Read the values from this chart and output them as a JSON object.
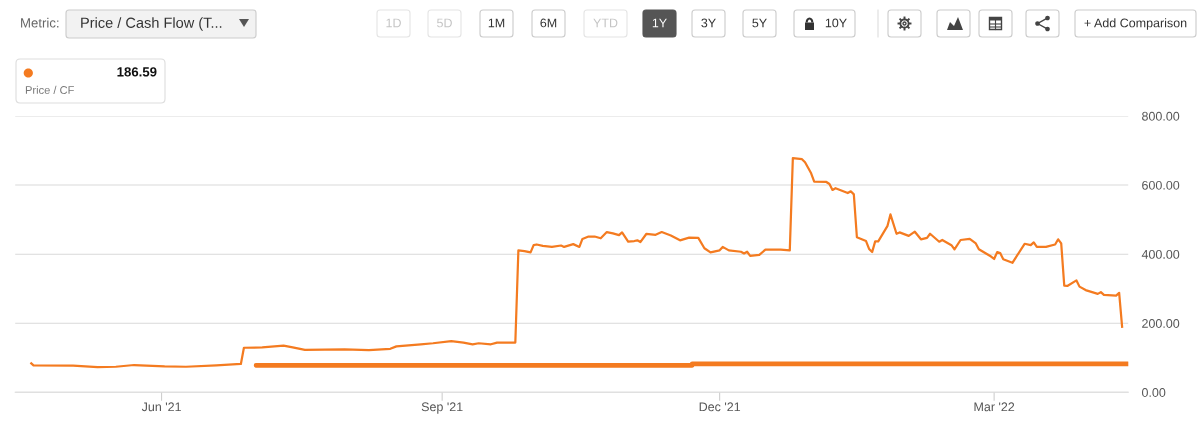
{
  "chart_data": {
    "type": "line",
    "title": "Price / Cash Flow (T...",
    "annotations": [
      "Metric:",
      "1D",
      "5D",
      "1M",
      "6M",
      "YTD",
      "1Y",
      "3Y",
      "5Y",
      "10Y",
      "+ Add Comparison",
      "186.59",
      "Price / CF"
    ],
    "xlim": [
      "2021-04-14",
      "2022-04-14"
    ],
    "xticks": [
      {
        "value": "2021-06-01",
        "label": "Jun '21"
      },
      {
        "value": "2021-09-01",
        "label": "Sep '21"
      },
      {
        "value": "2021-12-01",
        "label": "Dec '21"
      },
      {
        "value": "2022-03-01",
        "label": "Mar '22"
      }
    ],
    "ylim": [
      0,
      800
    ],
    "yticks": [
      {
        "value": 0,
        "label": "0.00"
      },
      {
        "value": 200,
        "label": "200.00"
      },
      {
        "value": 400,
        "label": "400.00"
      },
      {
        "value": 600,
        "label": "600.00"
      },
      {
        "value": 800,
        "label": "800.00"
      }
    ],
    "grid": "y",
    "line_style": "solid",
    "series": [
      {
        "color": "#f47b20",
        "x": [
          "2021-04-19",
          "2021-04-20",
          "2021-05-03",
          "2021-05-11",
          "2021-05-17",
          "2021-05-23",
          "2021-06-02",
          "2021-06-09",
          "2021-06-19",
          "2021-06-27",
          "2021-06-28",
          "2021-07-04",
          "2021-07-11",
          "2021-07-14",
          "2021-07-18",
          "2021-07-31",
          "2021-08-08",
          "2021-08-15",
          "2021-08-17",
          "2021-08-25",
          "2021-08-29",
          "2021-09-04",
          "2021-09-08",
          "2021-09-11",
          "2021-09-13",
          "2021-09-17",
          "2021-09-19",
          "2021-09-25",
          "2021-09-26",
          "2021-09-28",
          "2021-09-30",
          "2021-10-01",
          "2021-10-02",
          "2021-10-04",
          "2021-10-07",
          "2021-10-10",
          "2021-10-11",
          "2021-10-14",
          "2021-10-16",
          "2021-10-17",
          "2021-10-19",
          "2021-10-21",
          "2021-10-23",
          "2021-10-25",
          "2021-10-27",
          "2021-10-29",
          "2021-10-30",
          "2021-11-01",
          "2021-11-03",
          "2021-11-04",
          "2021-11-05",
          "2021-11-07",
          "2021-11-10",
          "2021-11-12",
          "2021-11-15",
          "2021-11-18",
          "2021-11-21",
          "2021-11-24",
          "2021-11-26",
          "2021-11-28",
          "2021-12-01",
          "2021-12-02",
          "2021-12-04",
          "2021-12-08",
          "2021-12-09",
          "2021-12-10",
          "2021-12-11",
          "2021-12-14",
          "2021-12-16",
          "2021-12-21",
          "2021-12-24",
          "2021-12-25",
          "2021-12-28",
          "2021-12-29",
          "2021-12-31",
          "2022-01-01",
          "2022-01-05",
          "2022-01-06",
          "2022-01-07",
          "2022-01-08",
          "2022-01-12",
          "2022-01-13",
          "2022-01-14",
          "2022-01-15",
          "2022-01-18",
          "2022-01-19",
          "2022-01-20",
          "2022-01-21",
          "2022-01-22",
          "2022-01-25",
          "2022-01-26",
          "2022-01-28",
          "2022-01-29",
          "2022-02-01",
          "2022-02-03",
          "2022-02-05",
          "2022-02-07",
          "2022-02-08",
          "2022-02-11",
          "2022-02-12",
          "2022-02-15",
          "2022-02-16",
          "2022-02-18",
          "2022-02-21",
          "2022-02-23",
          "2022-02-24",
          "2022-02-28",
          "2022-03-01",
          "2022-03-02",
          "2022-03-03",
          "2022-03-04",
          "2022-03-07",
          "2022-03-11",
          "2022-03-13",
          "2022-03-14",
          "2022-03-15",
          "2022-03-18",
          "2022-03-21",
          "2022-03-22",
          "2022-03-23",
          "2022-03-24",
          "2022-03-25",
          "2022-03-28",
          "2022-03-29",
          "2022-03-31",
          "2022-04-04",
          "2022-04-05",
          "2022-04-06",
          "2022-04-10",
          "2022-04-11",
          "2022-04-12"
        ],
        "values": [
          86,
          78,
          77,
          73,
          74,
          79,
          75,
          74,
          78,
          82,
          129,
          130,
          135,
          130,
          123,
          124,
          122,
          126,
          133,
          139,
          142,
          148,
          144,
          139,
          142,
          139,
          144,
          144,
          411,
          409,
          405,
          426,
          428,
          424,
          421,
          425,
          421,
          429,
          421,
          444,
          451,
          451,
          446,
          464,
          460,
          455,
          463,
          436,
          438,
          440,
          435,
          459,
          456,
          464,
          454,
          440,
          448,
          447,
          417,
          405,
          411,
          421,
          411,
          407,
          402,
          407,
          395,
          398,
          413,
          413,
          411,
          678,
          675,
          666,
          634,
          610,
          609,
          603,
          586,
          591,
          577,
          582,
          573,
          449,
          438,
          415,
          406,
          437,
          437,
          481,
          515,
          459,
          463,
          453,
          465,
          443,
          447,
          459,
          436,
          441,
          426,
          414,
          441,
          444,
          431,
          414,
          393,
          386,
          406,
          403,
          385,
          375,
          430,
          426,
          434,
          421,
          421,
          428,
          443,
          431,
          309,
          308,
          324,
          306,
          296,
          285,
          290,
          282,
          280,
          288,
          186.59
        ]
      },
      {
        "type": "step",
        "color": "#f47b20",
        "x": [
          "2021-07-02",
          "2021-11-22",
          "2022-04-14"
        ],
        "values": [
          78,
          82,
          82
        ]
      }
    ]
  }
}
